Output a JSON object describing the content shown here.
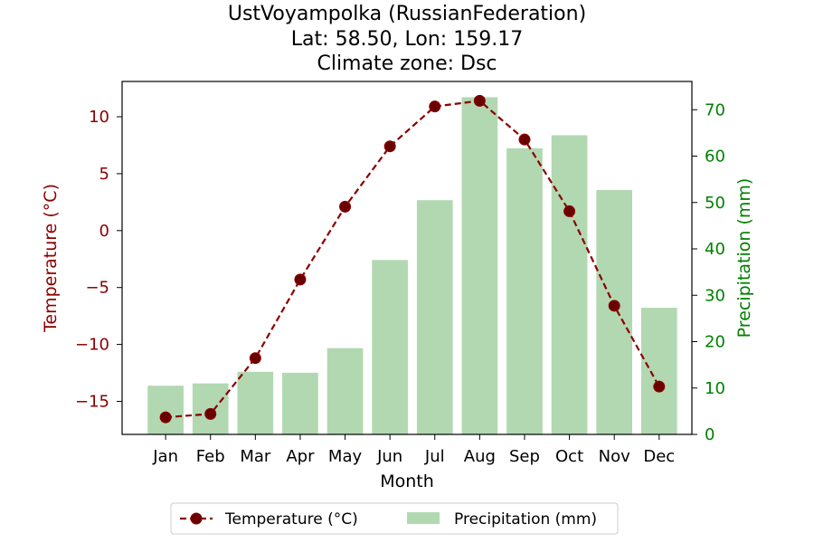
{
  "chart_data": {
    "type": "bar+line",
    "title_lines": [
      "UstVoyampolka (RussianFederation)",
      "Lat: 58.50, Lon: 159.17",
      "Climate zone: Dsc"
    ],
    "xlabel": "Month",
    "ylabel_left": "Temperature (°C)",
    "ylabel_right": "Precipitation (mm)",
    "categories": [
      "Jan",
      "Feb",
      "Mar",
      "Apr",
      "May",
      "Jun",
      "Jul",
      "Aug",
      "Sep",
      "Oct",
      "Nov",
      "Dec"
    ],
    "series": [
      {
        "name": "Temperature (°C)",
        "type": "line",
        "axis": "left",
        "values": [
          -16.4,
          -16.1,
          -11.2,
          -4.3,
          2.1,
          7.4,
          10.9,
          11.4,
          8.0,
          1.7,
          -6.6,
          -13.7
        ],
        "color": "#8b0000",
        "style": "dashed",
        "marker": "circle"
      },
      {
        "name": "Precipitation (mm)",
        "type": "bar",
        "axis": "right",
        "values": [
          10.5,
          11.0,
          13.5,
          13.3,
          18.6,
          37.6,
          50.5,
          72.7,
          61.7,
          64.5,
          52.7,
          27.3
        ],
        "color": "#b2d8b2"
      }
    ],
    "ylim_left": [
      -17.9,
      13.1
    ],
    "yticks_left": [
      10,
      5,
      0,
      -5,
      -10,
      -15
    ],
    "ylim_right": [
      0,
      76.1
    ],
    "yticks_right": [
      0,
      10,
      20,
      30,
      40,
      50,
      60,
      70
    ],
    "left_axis_color": "#8b0000",
    "right_axis_color": "#008000",
    "legend": {
      "position": "bottom-center",
      "entries": [
        "Temperature (°C)",
        "Precipitation (mm)"
      ]
    },
    "grid": false
  }
}
